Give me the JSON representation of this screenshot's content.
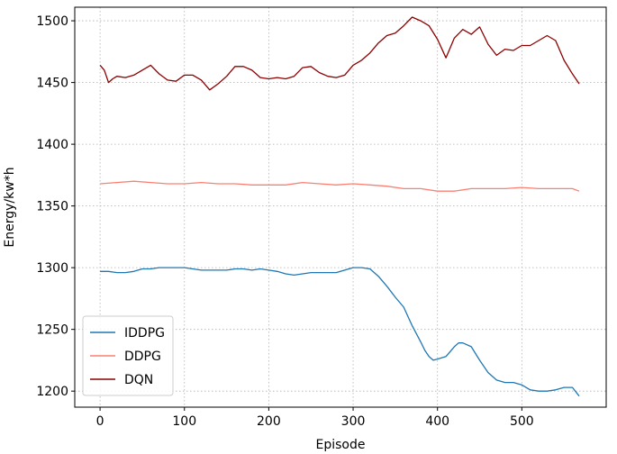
{
  "chart_data": {
    "type": "line",
    "title": "",
    "xlabel": "Episode",
    "ylabel": "Energy/kw*h",
    "xlim": [
      -30,
      600
    ],
    "ylim": [
      1187,
      1511
    ],
    "xticks": [
      0,
      100,
      200,
      300,
      400,
      500
    ],
    "yticks": [
      1200,
      1250,
      1300,
      1350,
      1400,
      1450,
      1500
    ],
    "grid": true,
    "legend_position": "lower-left",
    "series": [
      {
        "name": "IDDPG",
        "color": "#1f77b4",
        "x": [
          0,
          10,
          20,
          30,
          40,
          50,
          60,
          70,
          80,
          90,
          100,
          110,
          120,
          130,
          140,
          150,
          160,
          170,
          180,
          190,
          200,
          210,
          220,
          230,
          240,
          250,
          260,
          270,
          280,
          290,
          300,
          310,
          320,
          330,
          340,
          350,
          360,
          370,
          380,
          385,
          390,
          395,
          400,
          410,
          420,
          425,
          430,
          440,
          450,
          460,
          470,
          480,
          490,
          500,
          510,
          520,
          530,
          540,
          550,
          560,
          568
        ],
        "values": [
          1297,
          1297,
          1296,
          1296,
          1297,
          1299,
          1299,
          1300,
          1300,
          1300,
          1300,
          1299,
          1298,
          1298,
          1298,
          1298,
          1299,
          1299,
          1298,
          1299,
          1298,
          1297,
          1295,
          1294,
          1295,
          1296,
          1296,
          1296,
          1296,
          1298,
          1300,
          1300,
          1299,
          1293,
          1285,
          1276,
          1268,
          1253,
          1240,
          1233,
          1228,
          1225,
          1226,
          1228,
          1236,
          1239,
          1239,
          1236,
          1225,
          1215,
          1209,
          1207,
          1207,
          1205,
          1201,
          1200,
          1200,
          1201,
          1203,
          1203,
          1196
        ]
      },
      {
        "name": "DDPG",
        "color": "#fa8072",
        "x": [
          0,
          20,
          40,
          60,
          80,
          100,
          120,
          140,
          160,
          180,
          200,
          220,
          240,
          260,
          280,
          300,
          320,
          340,
          360,
          380,
          400,
          420,
          440,
          460,
          480,
          500,
          520,
          540,
          560,
          568
        ],
        "values": [
          1368,
          1369,
          1370,
          1369,
          1368,
          1368,
          1369,
          1368,
          1368,
          1367,
          1367,
          1367,
          1369,
          1368,
          1367,
          1368,
          1367,
          1366,
          1364,
          1364,
          1362,
          1362,
          1364,
          1364,
          1364,
          1365,
          1364,
          1364,
          1364,
          1362
        ]
      },
      {
        "name": "DQN",
        "color": "#8b0000",
        "x": [
          0,
          5,
          10,
          15,
          20,
          30,
          40,
          50,
          60,
          70,
          80,
          90,
          100,
          110,
          120,
          130,
          140,
          150,
          160,
          170,
          180,
          190,
          200,
          210,
          220,
          230,
          240,
          250,
          260,
          270,
          280,
          290,
          300,
          310,
          320,
          330,
          340,
          350,
          360,
          370,
          380,
          390,
          400,
          410,
          420,
          430,
          440,
          450,
          460,
          470,
          480,
          490,
          500,
          510,
          520,
          530,
          540,
          550,
          560,
          565,
          568
        ],
        "values": [
          1464,
          1460,
          1450,
          1453,
          1455,
          1454,
          1456,
          1460,
          1464,
          1457,
          1452,
          1451,
          1456,
          1456,
          1452,
          1444,
          1449,
          1455,
          1463,
          1463,
          1460,
          1454,
          1453,
          1454,
          1453,
          1455,
          1462,
          1463,
          1458,
          1455,
          1454,
          1456,
          1464,
          1468,
          1474,
          1482,
          1488,
          1490,
          1496,
          1503,
          1500,
          1496,
          1485,
          1470,
          1486,
          1493,
          1489,
          1495,
          1481,
          1472,
          1477,
          1476,
          1480,
          1480,
          1484,
          1488,
          1484,
          1468,
          1457,
          1452,
          1449
        ]
      }
    ]
  }
}
